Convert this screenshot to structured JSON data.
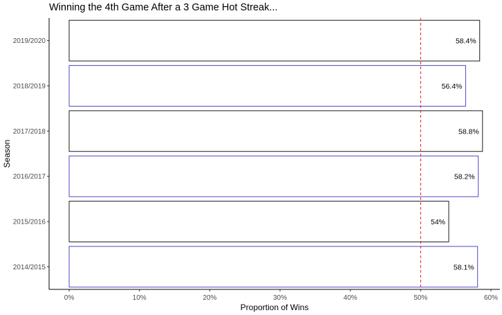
{
  "chart_data": {
    "type": "bar",
    "orientation": "horizontal",
    "title": "Winning the 4th Game After a 3 Game Hot Streak...",
    "xlabel": "Proportion of Wins",
    "ylabel": "Season",
    "categories": [
      "2014/2015",
      "2015/2016",
      "2016/2017",
      "2017/2018",
      "2018/2019",
      "2019/2020"
    ],
    "values": [
      0.581,
      0.54,
      0.582,
      0.588,
      0.564,
      0.584
    ],
    "value_labels": [
      "58.1%",
      "54%",
      "58.2%",
      "58.8%",
      "56.4%",
      "58.4%"
    ],
    "xlim": [
      0,
      0.6
    ],
    "xticks": [
      0,
      0.1,
      0.2,
      0.3,
      0.4,
      0.5,
      0.6
    ],
    "xtick_labels": [
      "0%",
      "10%",
      "20%",
      "30%",
      "40%",
      "50%",
      "60%"
    ],
    "reference_line": {
      "x": 0.5,
      "style": "dashed",
      "color": "#e41a1c"
    },
    "bar_fill": "#ffffff",
    "bar_outline_colors": [
      "#4b47c8",
      "#1b1b1b",
      "#4b47c8",
      "#1b1b1b",
      "#4b47c8",
      "#1b1b1b"
    ],
    "grid": false
  }
}
